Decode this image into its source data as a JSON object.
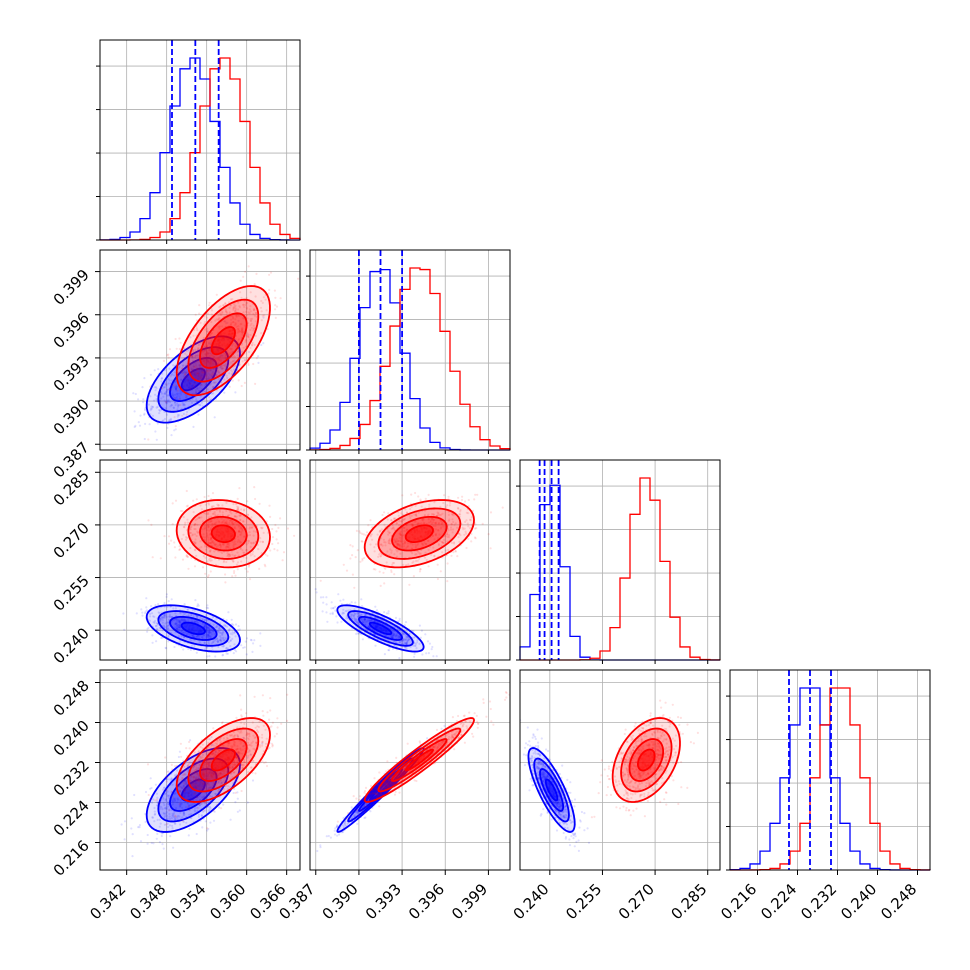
{
  "colors": {
    "blue": "#0000ff",
    "red": "#ff0000",
    "grid": "#b0b0b0",
    "axis": "#000000"
  },
  "chart_data": {
    "type": "corner",
    "parameters": [
      {
        "range": [
          0.338,
          0.368
        ],
        "ticks": [
          "0.342",
          "0.348",
          "0.354",
          "0.360",
          "0.366"
        ],
        "tick_values": [
          0.342,
          0.348,
          0.354,
          0.36,
          0.366
        ]
      },
      {
        "range": [
          0.3866,
          0.4005
        ],
        "ticks": [
          "0.387",
          "0.390",
          "0.393",
          "0.396",
          "0.399"
        ],
        "tick_values": [
          0.387,
          0.39,
          0.393,
          0.396,
          0.399
        ]
      },
      {
        "range": [
          0.2315,
          0.2885
        ],
        "ticks": [
          "0.240",
          "0.255",
          "0.270",
          "0.285"
        ],
        "tick_values": [
          0.24,
          0.255,
          0.27,
          0.285
        ]
      },
      {
        "range": [
          0.2105,
          0.2505
        ],
        "ticks": [
          "0.216",
          "0.224",
          "0.232",
          "0.240",
          "0.248"
        ],
        "tick_values": [
          0.216,
          0.224,
          0.232,
          0.24,
          0.248
        ]
      }
    ],
    "series": [
      {
        "color": "blue",
        "mean": [
          0.352,
          0.3915,
          0.2405,
          0.2265
        ],
        "sd": [
          0.0035,
          0.0015,
          0.0033,
          0.0042
        ],
        "quantile_lines": [
          [
            0.3488,
            0.3523,
            0.3558
          ],
          [
            0.39,
            0.3915,
            0.393
          ],
          [
            0.2371,
            0.2385,
            0.2405,
            0.2425
          ],
          [
            0.2223,
            0.2265,
            0.2307
          ]
        ],
        "corr": [
          [
            1,
            0.6,
            -0.5,
            0.6
          ],
          [
            0.6,
            1,
            -0.8,
            0.98
          ],
          [
            -0.5,
            -0.8,
            1,
            -0.8
          ],
          [
            0.6,
            0.98,
            -0.8,
            1
          ]
        ]
      },
      {
        "color": "red",
        "mean": [
          0.3565,
          0.3942,
          0.2675,
          0.2325
        ],
        "sd": [
          0.0035,
          0.0019,
          0.0048,
          0.0042
        ],
        "corr": [
          [
            1,
            0.6,
            -0.1,
            0.6
          ],
          [
            0.6,
            1,
            0.4,
            0.95
          ],
          [
            -0.1,
            0.4,
            1,
            0.4
          ],
          [
            0.6,
            0.95,
            0.4,
            1
          ]
        ]
      }
    ]
  }
}
